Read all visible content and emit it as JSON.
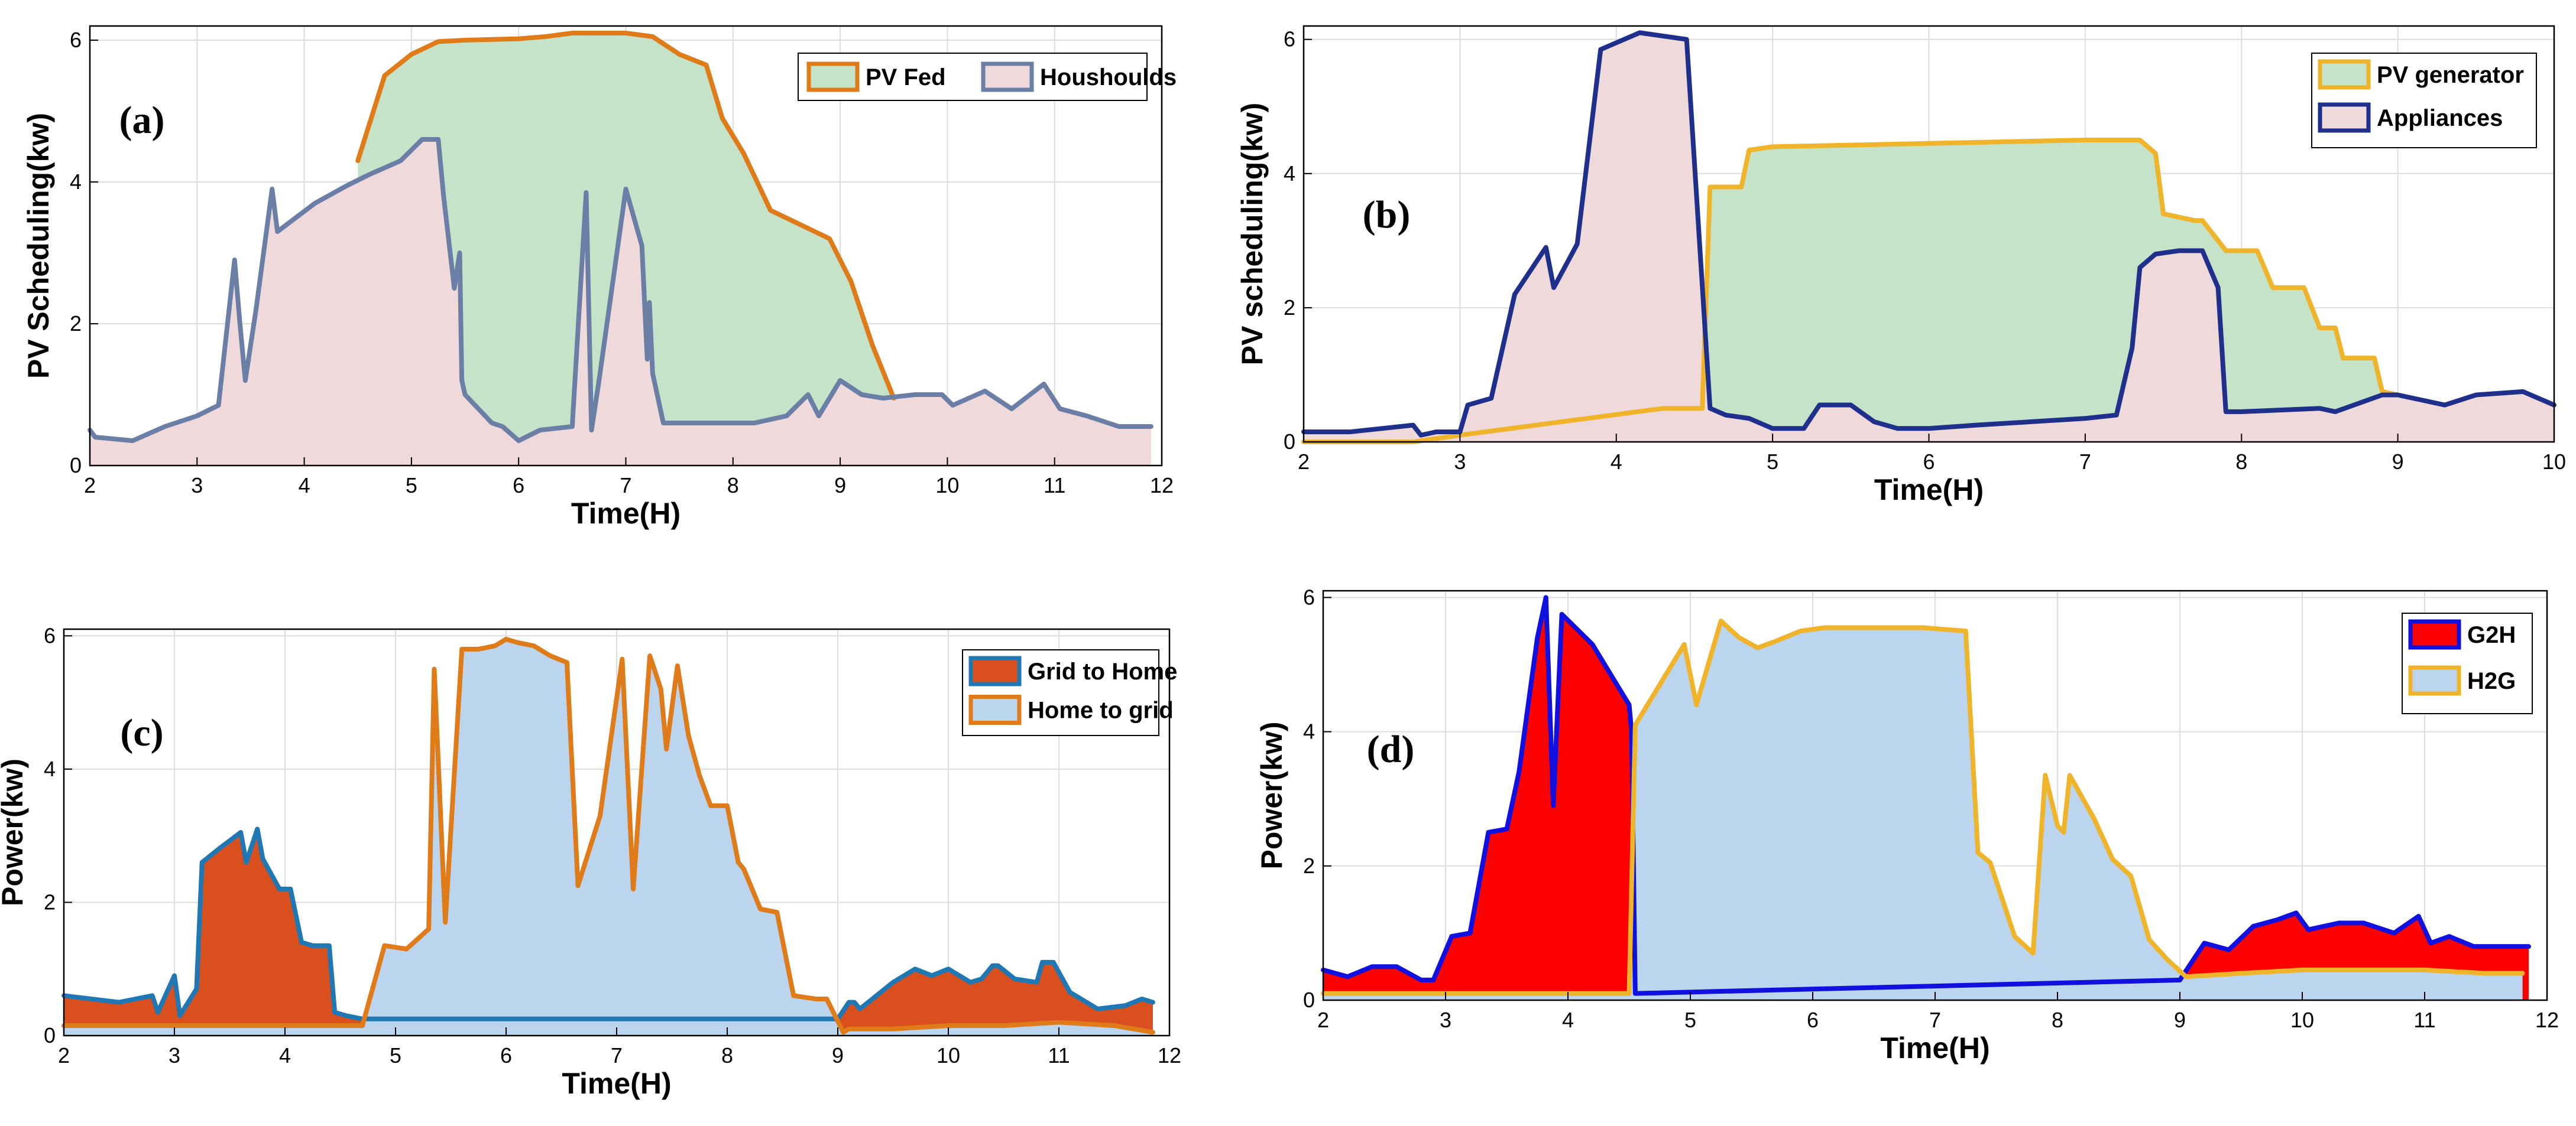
{
  "chart_data": [
    {
      "type": "area",
      "panel_label": "(a)",
      "title": "",
      "xlabel": "Time(H)",
      "ylabel": "PV Scheduling(kw)",
      "xlim": [
        2,
        12
      ],
      "ylim": [
        0,
        6.2
      ],
      "xticks": [
        2,
        3,
        4,
        5,
        6,
        7,
        8,
        9,
        10,
        11,
        12
      ],
      "yticks": [
        0,
        2,
        4,
        6
      ],
      "grid": true,
      "legend_position": "top-right",
      "series": [
        {
          "name": "PV Fed",
          "line_color": "#e07b1a",
          "fill_color": "#c5e3c9",
          "x": [
            4.5,
            4.75,
            5.0,
            5.25,
            5.5,
            6.0,
            6.25,
            6.5,
            7.0,
            7.25,
            7.5,
            7.75,
            7.9,
            8.1,
            8.35,
            8.9,
            9.1,
            9.3,
            9.5
          ],
          "y": [
            4.3,
            5.5,
            5.8,
            5.98,
            6.0,
            6.02,
            6.05,
            6.1,
            6.1,
            6.05,
            5.8,
            5.65,
            4.9,
            4.4,
            3.6,
            3.2,
            2.6,
            1.7,
            0.95
          ]
        },
        {
          "name": "Houshoulds",
          "line_color": "#6b7fa6",
          "fill_color": "#efd9da",
          "x": [
            2.0,
            2.05,
            2.4,
            2.7,
            3.0,
            3.2,
            3.35,
            3.4,
            3.45,
            3.55,
            3.7,
            3.75,
            4.1,
            4.4,
            4.6,
            4.9,
            5.1,
            5.25,
            5.3,
            5.4,
            5.45,
            5.47,
            5.5,
            5.75,
            5.85,
            6.0,
            6.2,
            6.5,
            6.63,
            6.68,
            6.75,
            7.0,
            7.15,
            7.2,
            7.22,
            7.25,
            7.35,
            7.6,
            7.9,
            8.2,
            8.5,
            8.7,
            8.8,
            9.0,
            9.2,
            9.4,
            9.7,
            9.95,
            10.05,
            10.2,
            10.35,
            10.6,
            10.9,
            11.05,
            11.3,
            11.6,
            11.9
          ],
          "y": [
            0.5,
            0.4,
            0.35,
            0.55,
            0.7,
            0.85,
            2.9,
            2.0,
            1.2,
            2.2,
            3.9,
            3.3,
            3.7,
            3.95,
            4.1,
            4.3,
            4.6,
            4.6,
            3.8,
            2.5,
            3.0,
            1.2,
            1.0,
            0.6,
            0.55,
            0.35,
            0.5,
            0.55,
            3.85,
            0.5,
            1.2,
            3.9,
            3.1,
            1.5,
            2.3,
            1.3,
            0.6,
            0.6,
            0.6,
            0.6,
            0.7,
            1.0,
            0.7,
            1.2,
            1.0,
            0.95,
            1.0,
            1.0,
            0.85,
            0.95,
            1.05,
            0.8,
            1.15,
            0.8,
            0.7,
            0.55,
            0.55
          ]
        }
      ]
    },
    {
      "type": "area",
      "panel_label": "(b)",
      "title": "",
      "xlabel": "Time(H)",
      "ylabel": "PV scheduling(kw)",
      "xlim": [
        2,
        10
      ],
      "ylim": [
        0,
        6.2
      ],
      "xticks": [
        2,
        3,
        4,
        5,
        6,
        7,
        8,
        9,
        10
      ],
      "yticks": [
        0,
        2,
        4,
        6
      ],
      "grid": true,
      "legend_position": "top-right",
      "series": [
        {
          "name": "PV generator",
          "line_color": "#f0b42a",
          "fill_color": "#c5e3c9",
          "x": [
            2.0,
            2.7,
            3.0,
            4.3,
            4.55,
            4.6,
            4.8,
            4.85,
            5.0,
            6.0,
            7.0,
            7.35,
            7.45,
            7.5,
            7.7,
            7.75,
            7.9,
            8.05,
            8.1,
            8.2,
            8.3,
            8.4,
            8.5,
            8.6,
            8.65,
            8.85,
            8.9,
            9.0
          ],
          "y": [
            0.0,
            0.0,
            0.1,
            0.5,
            0.5,
            3.8,
            3.8,
            4.35,
            4.4,
            4.45,
            4.5,
            4.5,
            4.3,
            3.4,
            3.3,
            3.3,
            2.85,
            2.85,
            2.85,
            2.3,
            2.3,
            2.3,
            1.7,
            1.7,
            1.25,
            1.25,
            0.75,
            0.7
          ]
        },
        {
          "name": "Appliances",
          "line_color": "#1f2f8c",
          "fill_color": "#efd9da",
          "x": [
            2.0,
            2.3,
            2.5,
            2.7,
            2.75,
            2.85,
            3.0,
            3.05,
            3.2,
            3.35,
            3.55,
            3.6,
            3.75,
            3.9,
            4.15,
            4.45,
            4.6,
            4.7,
            4.85,
            5.0,
            5.2,
            5.3,
            5.5,
            5.65,
            5.8,
            6.0,
            6.3,
            7.0,
            7.2,
            7.3,
            7.35,
            7.45,
            7.6,
            7.75,
            7.85,
            7.9,
            8.0,
            8.5,
            8.6,
            8.9,
            9.0,
            9.2,
            9.3,
            9.5,
            9.8,
            10.0
          ],
          "y": [
            0.15,
            0.15,
            0.2,
            0.25,
            0.1,
            0.15,
            0.15,
            0.55,
            0.65,
            2.2,
            2.9,
            2.3,
            2.95,
            5.85,
            6.1,
            6.0,
            0.5,
            0.4,
            0.35,
            0.2,
            0.2,
            0.55,
            0.55,
            0.3,
            0.2,
            0.2,
            0.25,
            0.35,
            0.4,
            1.4,
            2.6,
            2.8,
            2.85,
            2.85,
            2.3,
            0.45,
            0.45,
            0.5,
            0.45,
            0.7,
            0.7,
            0.6,
            0.55,
            0.7,
            0.75,
            0.55
          ]
        }
      ]
    },
    {
      "type": "area",
      "panel_label": "(c)",
      "title": "",
      "xlabel": "Time(H)",
      "ylabel": "Power(kw)",
      "xlim": [
        2,
        12
      ],
      "ylim": [
        0,
        6.1
      ],
      "xticks": [
        2,
        3,
        4,
        5,
        6,
        7,
        8,
        9,
        10,
        11,
        12
      ],
      "yticks": [
        0,
        2,
        4,
        6
      ],
      "grid": true,
      "legend_position": "top-right",
      "series": [
        {
          "name": "Grid to Home",
          "line_color": "#1f78b4",
          "fill_color": "#d94f1e",
          "x": [
            2.0,
            2.5,
            2.8,
            2.85,
            3.0,
            3.05,
            3.2,
            3.25,
            3.4,
            3.6,
            3.65,
            3.75,
            3.8,
            3.95,
            4.05,
            4.15,
            4.25,
            4.4,
            4.45,
            4.55,
            4.7,
            9.0,
            9.1,
            9.15,
            9.2,
            9.35,
            9.5,
            9.7,
            9.85,
            10.0,
            10.2,
            10.3,
            10.4,
            10.45,
            10.6,
            10.8,
            10.85,
            10.95,
            11.1,
            11.2,
            11.35,
            11.6,
            11.75,
            11.85
          ],
          "y": [
            0.6,
            0.5,
            0.6,
            0.35,
            0.9,
            0.3,
            0.7,
            2.6,
            2.8,
            3.05,
            2.6,
            3.1,
            2.65,
            2.2,
            2.2,
            1.4,
            1.35,
            1.35,
            0.35,
            0.3,
            0.25,
            0.25,
            0.5,
            0.5,
            0.4,
            0.6,
            0.8,
            1.0,
            0.9,
            1.0,
            0.8,
            0.85,
            1.05,
            1.05,
            0.85,
            0.8,
            1.1,
            1.1,
            0.65,
            0.55,
            0.4,
            0.45,
            0.55,
            0.5
          ]
        },
        {
          "name": "Home to grid",
          "line_color": "#e07b1a",
          "fill_color": "#bcd5ee",
          "x": [
            2.0,
            2.8,
            2.85,
            3.0,
            3.05,
            3.3,
            4.0,
            4.7,
            4.9,
            5.1,
            5.3,
            5.35,
            5.45,
            5.6,
            5.75,
            5.9,
            6.0,
            6.1,
            6.25,
            6.4,
            6.55,
            6.65,
            6.85,
            7.05,
            7.15,
            7.3,
            7.4,
            7.45,
            7.55,
            7.65,
            7.75,
            7.85,
            8.0,
            8.1,
            8.15,
            8.3,
            8.45,
            8.6,
            8.8,
            8.9,
            9.05,
            9.1,
            9.5,
            10.0,
            10.5,
            11.0,
            11.5,
            11.85
          ],
          "y": [
            0.15,
            0.15,
            0.15,
            0.15,
            0.15,
            0.15,
            0.15,
            0.15,
            1.35,
            1.3,
            1.6,
            5.5,
            1.7,
            5.8,
            5.8,
            5.85,
            5.95,
            5.9,
            5.85,
            5.7,
            5.6,
            2.25,
            3.3,
            5.65,
            2.2,
            5.7,
            5.2,
            4.3,
            5.55,
            4.5,
            3.9,
            3.45,
            3.45,
            2.6,
            2.5,
            1.9,
            1.85,
            0.6,
            0.55,
            0.55,
            0.05,
            0.1,
            0.1,
            0.15,
            0.15,
            0.2,
            0.15,
            0.05
          ]
        }
      ]
    },
    {
      "type": "area",
      "panel_label": "(d)",
      "title": "",
      "xlabel": "Time(H)",
      "ylabel": "Power(kw)",
      "xlim": [
        2,
        12
      ],
      "ylim": [
        0,
        6.1
      ],
      "xticks": [
        2,
        3,
        4,
        5,
        6,
        7,
        8,
        9,
        10,
        11,
        12
      ],
      "yticks": [
        0,
        2,
        4,
        6
      ],
      "grid": true,
      "legend_position": "top-right",
      "series": [
        {
          "name": "G2H",
          "line_color": "#1010e0",
          "fill_color": "#ff0000",
          "x": [
            2.0,
            2.2,
            2.4,
            2.6,
            2.8,
            2.9,
            3.05,
            3.2,
            3.35,
            3.5,
            3.6,
            3.75,
            3.82,
            3.88,
            3.95,
            4.2,
            4.5,
            4.52,
            4.55,
            9.0,
            9.2,
            9.4,
            9.6,
            9.8,
            9.95,
            10.05,
            10.3,
            10.5,
            10.75,
            10.95,
            11.05,
            11.2,
            11.4,
            11.6,
            11.75,
            11.85
          ],
          "y": [
            0.45,
            0.35,
            0.5,
            0.5,
            0.3,
            0.3,
            0.95,
            1.0,
            2.5,
            2.55,
            3.4,
            5.4,
            6.0,
            2.9,
            5.75,
            5.3,
            4.4,
            4.0,
            0.1,
            0.3,
            0.85,
            0.75,
            1.1,
            1.2,
            1.3,
            1.05,
            1.15,
            1.15,
            1.0,
            1.25,
            0.85,
            0.95,
            0.8,
            0.8,
            0.8,
            0.8
          ]
        },
        {
          "name": "H2G",
          "line_color": "#f0b42a",
          "fill_color": "#bcd5ee",
          "x": [
            2.0,
            3.0,
            4.0,
            4.5,
            4.55,
            4.95,
            5.05,
            5.25,
            5.4,
            5.55,
            5.7,
            5.9,
            6.1,
            6.5,
            6.9,
            7.25,
            7.35,
            7.45,
            7.65,
            7.8,
            7.9,
            8.0,
            8.05,
            8.1,
            8.3,
            8.45,
            8.6,
            8.75,
            8.9,
            9.05,
            9.5,
            10.0,
            10.5,
            11.0,
            11.5,
            11.8
          ],
          "y": [
            0.1,
            0.1,
            0.1,
            0.1,
            4.1,
            5.3,
            4.4,
            5.65,
            5.4,
            5.25,
            5.35,
            5.5,
            5.55,
            5.55,
            5.55,
            5.5,
            2.2,
            2.05,
            0.95,
            0.7,
            3.35,
            2.6,
            2.5,
            3.35,
            2.7,
            2.1,
            1.85,
            0.9,
            0.6,
            0.35,
            0.4,
            0.45,
            0.45,
            0.45,
            0.4,
            0.4
          ]
        }
      ]
    }
  ]
}
